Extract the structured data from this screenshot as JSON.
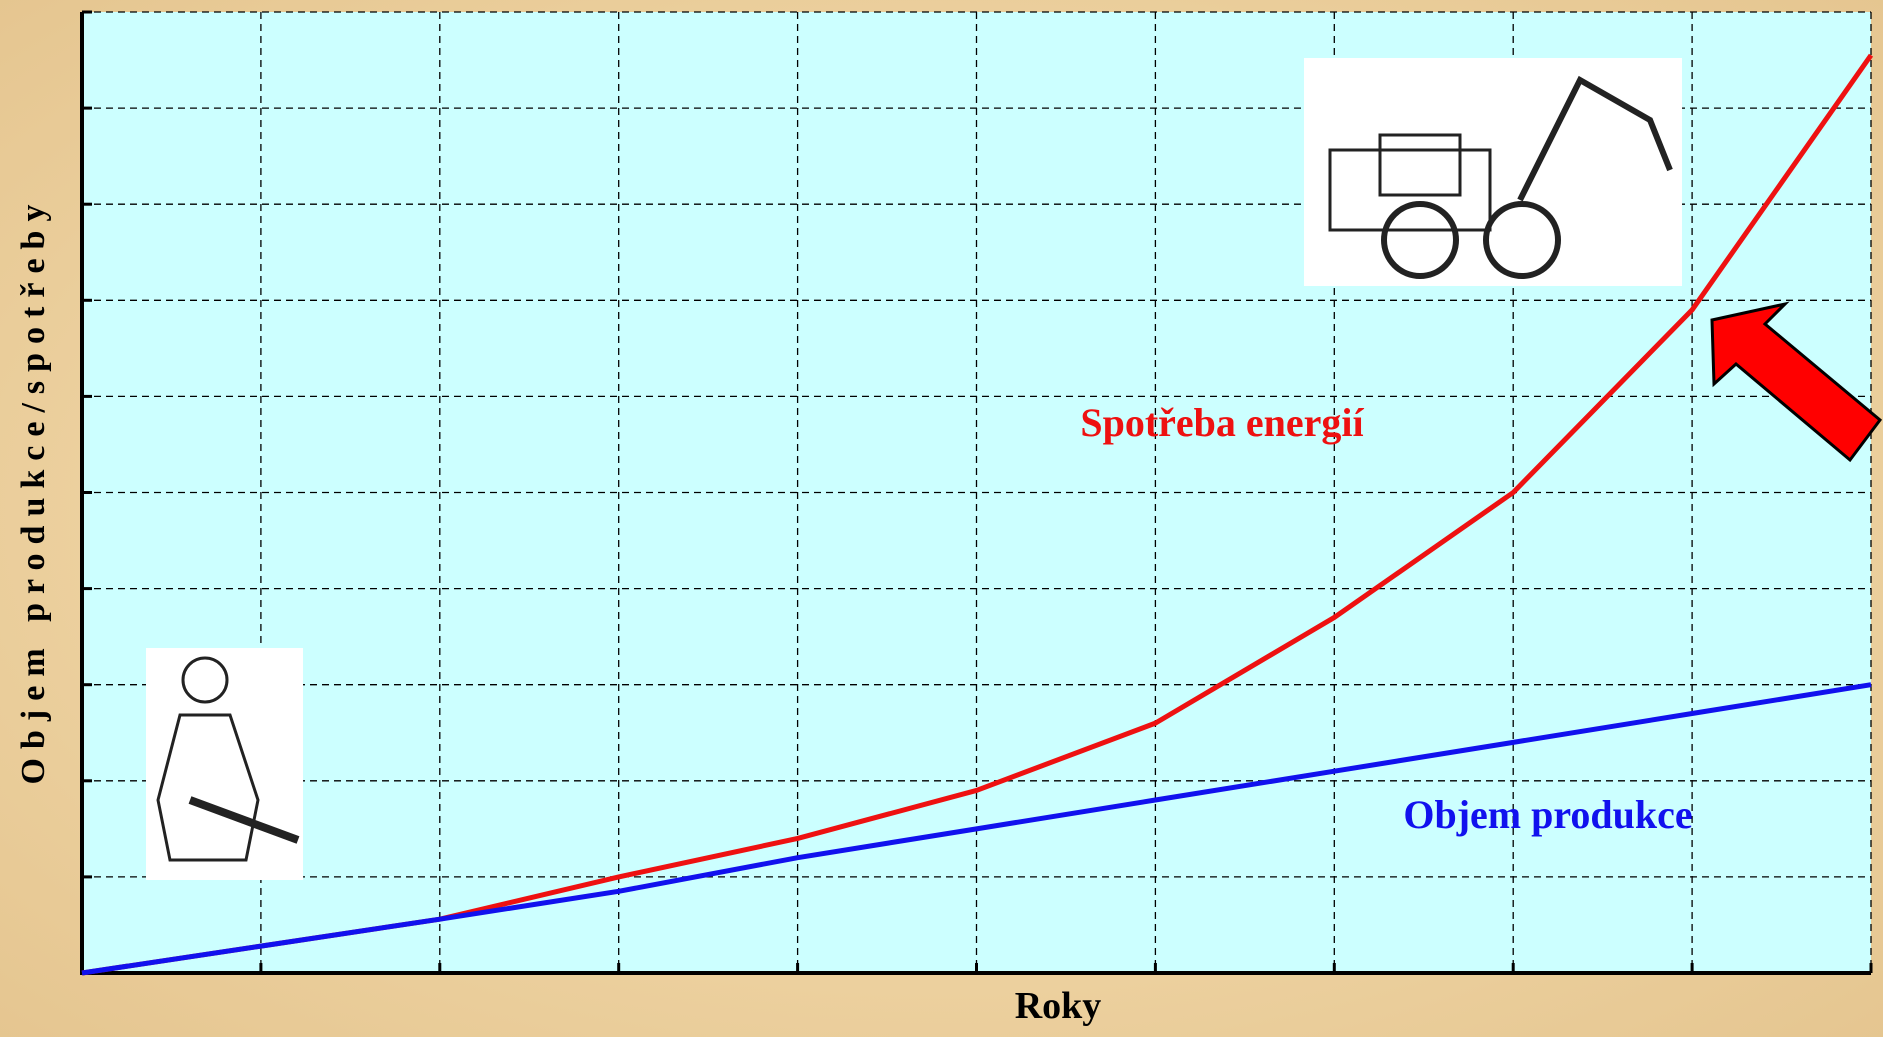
{
  "chart_data": {
    "type": "line",
    "x": [
      0,
      1,
      2,
      3,
      4,
      5,
      6,
      7,
      8,
      9,
      10
    ],
    "series": [
      {
        "name": "Spotřeba energií",
        "color": "#ee1111",
        "values": [
          0,
          0.28,
          0.56,
          1.0,
          1.4,
          1.9,
          2.6,
          3.7,
          5.0,
          6.9,
          9.55
        ]
      },
      {
        "name": "Objem produkce",
        "color": "#1111ee",
        "values": [
          0,
          0.28,
          0.56,
          0.85,
          1.2,
          1.5,
          1.8,
          2.1,
          2.4,
          2.7,
          3.0
        ]
      }
    ],
    "xlabel": "Roky",
    "ylabel": "Objem produkce/spotřeby",
    "xlim": [
      0,
      10
    ],
    "ylim": [
      0,
      10
    ],
    "xticks": [
      0,
      1,
      2,
      3,
      4,
      5,
      6,
      7,
      8,
      9,
      10
    ],
    "yticks": [
      0,
      1,
      2,
      3,
      4,
      5,
      6,
      7,
      8,
      9,
      10
    ],
    "grid": true
  }
}
